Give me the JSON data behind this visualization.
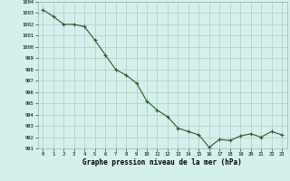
{
  "x": [
    0,
    1,
    2,
    3,
    4,
    5,
    6,
    7,
    8,
    9,
    10,
    11,
    12,
    13,
    14,
    15,
    16,
    17,
    18,
    19,
    20,
    21,
    22,
    23
  ],
  "y": [
    1003.3,
    1002.7,
    1002.0,
    1002.0,
    1001.8,
    1000.6,
    999.3,
    998.0,
    997.5,
    996.8,
    995.2,
    994.4,
    993.8,
    992.8,
    992.5,
    992.2,
    991.1,
    991.8,
    991.7,
    992.1,
    992.3,
    992.0,
    992.5,
    992.2
  ],
  "line_color": "#2d5a27",
  "marker_color": "#2d5a27",
  "bg_color": "#d4f0ec",
  "grid_color": "#aaccc8",
  "xlabel": "Graphe pression niveau de la mer (hPa)",
  "ylim": [
    991,
    1004
  ],
  "xlim": [
    -0.5,
    23.5
  ],
  "yticks": [
    991,
    992,
    993,
    994,
    995,
    996,
    997,
    998,
    999,
    1000,
    1001,
    1002,
    1003,
    1004
  ],
  "xticks": [
    0,
    1,
    2,
    3,
    4,
    5,
    6,
    7,
    8,
    9,
    10,
    11,
    12,
    13,
    14,
    15,
    16,
    17,
    18,
    19,
    20,
    21,
    22,
    23
  ]
}
